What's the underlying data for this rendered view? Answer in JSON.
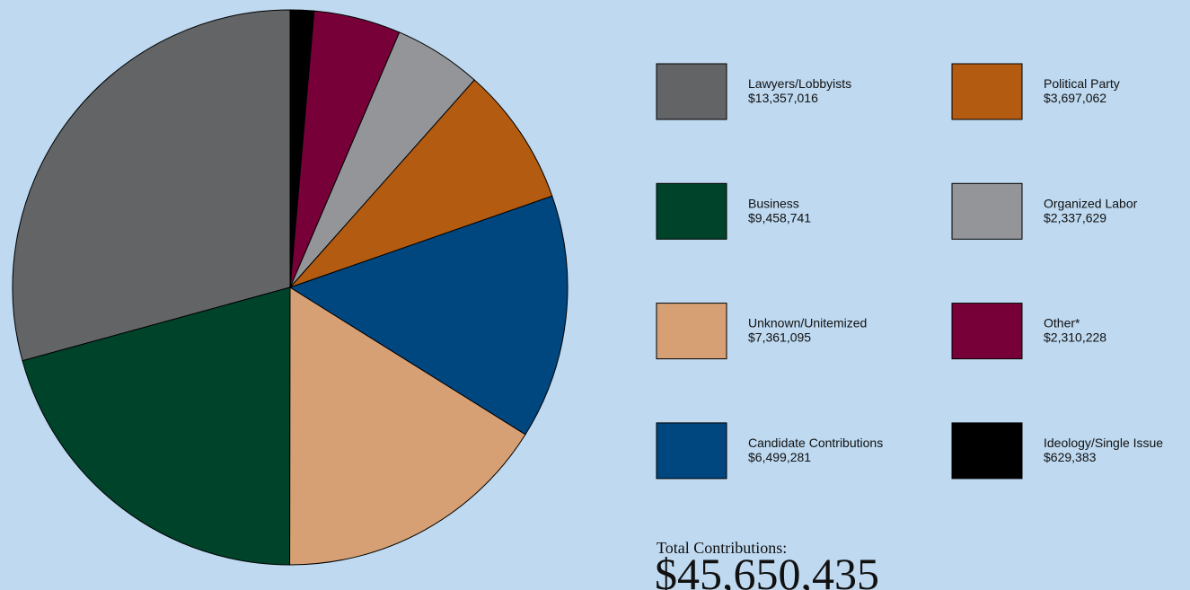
{
  "chart_data": {
    "type": "pie",
    "categories": [
      "Lawyers/Lobbyists",
      "Business",
      "Unknown/Unitemized",
      "Candidate Contributions",
      "Political Party",
      "Organized Labor",
      "Other*",
      "Ideology/Single Issue"
    ],
    "values": [
      13357016,
      9458741,
      7361095,
      6499281,
      3697062,
      2337629,
      2310228,
      629383
    ],
    "value_labels": [
      "$13,357,016",
      "$9,458,741",
      "$7,361,095",
      "$6,499,281",
      "$3,697,062",
      "$2,337,629",
      "$2,310,228",
      "$629,383"
    ],
    "colors": [
      "#636466",
      "#00432b",
      "#d6a074",
      "#00467f",
      "#b35b11",
      "#939598",
      "#780038",
      "#000000"
    ],
    "total_title": "Total Contributions:",
    "total": 45650435,
    "total_label": "$45,650,435"
  }
}
